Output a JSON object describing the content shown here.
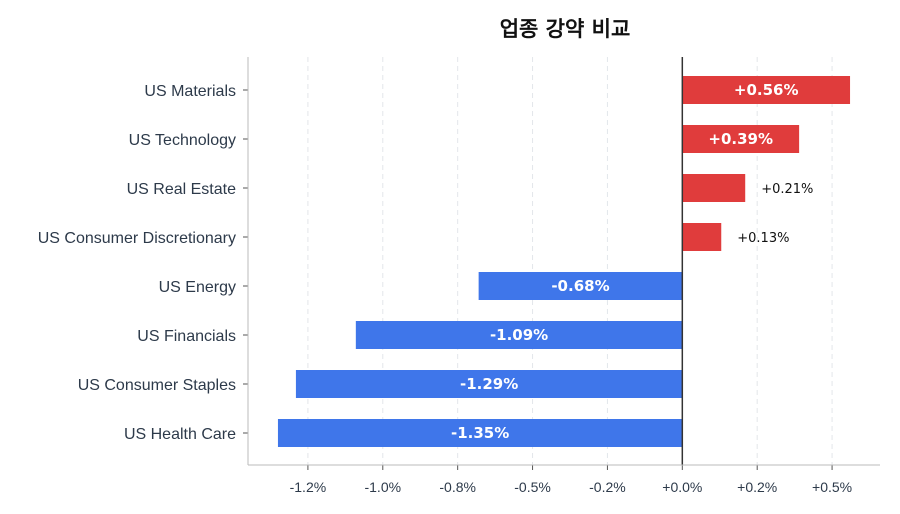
{
  "chart_data": {
    "type": "bar",
    "orientation": "horizontal",
    "title": "업종 강약 비교",
    "xlabel": "",
    "ylabel": "",
    "categories": [
      "US Materials",
      "US Technology",
      "US Real Estate",
      "US Consumer Discretionary",
      "US Energy",
      "US Financials",
      "US Consumer Staples",
      "US Health Care"
    ],
    "values": [
      0.56,
      0.39,
      0.21,
      0.13,
      -0.68,
      -1.09,
      -1.29,
      -1.35
    ],
    "value_labels": [
      "+0.56%",
      "+0.39%",
      "+0.21%",
      "+0.13%",
      "-0.68%",
      "-1.09%",
      "-1.29%",
      "-1.35%"
    ],
    "xlim": [
      -1.45,
      0.66
    ],
    "xticks": [
      -1.25,
      -1.0,
      -0.75,
      -0.5,
      -0.25,
      0.0,
      0.25,
      0.5
    ],
    "xticklabels": [
      "-1.2%",
      "-1.0%",
      "-0.8%",
      "-0.5%",
      "-0.2%",
      "+0.0%",
      "+0.2%",
      "+0.5%"
    ],
    "grid": "vertical dashed",
    "colors": {
      "positive": "#e03c3c",
      "negative": "#3f76ea"
    }
  }
}
